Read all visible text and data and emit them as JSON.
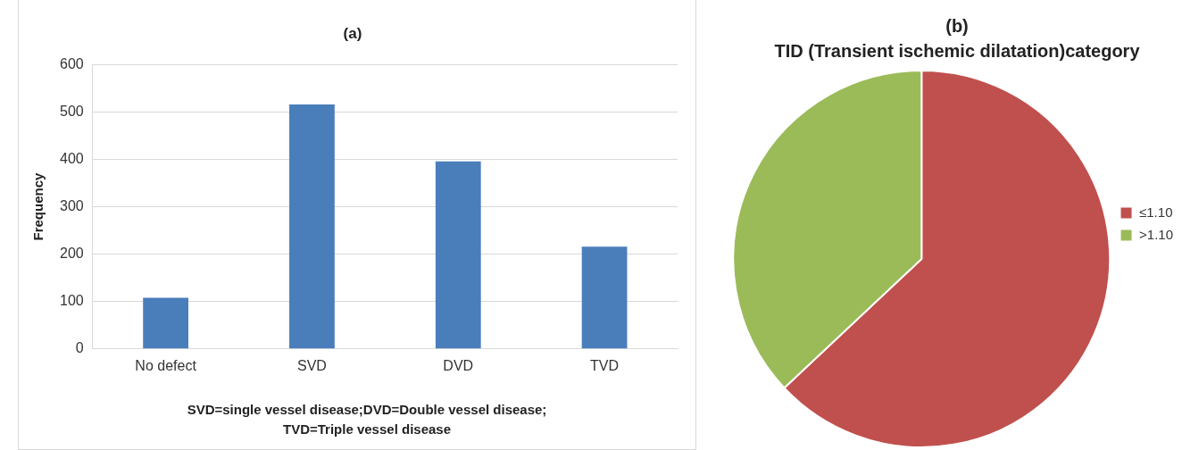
{
  "chart_data": [
    {
      "type": "bar",
      "title": "(a)",
      "ylabel": "Frequency",
      "xlabel": "SVD=single vessel disease;DVD=Double vessel disease; TVD=Triple vessel disease",
      "categories": [
        "No defect",
        "SVD",
        "DVD",
        "TVD"
      ],
      "values": [
        108,
        516,
        396,
        216
      ],
      "color": "#4a7ebb",
      "ylim": [
        0,
        600
      ],
      "yticks": [
        0,
        100,
        200,
        300,
        400,
        500,
        600
      ],
      "grid": "y",
      "legend": false
    },
    {
      "type": "pie",
      "title": "(b)",
      "subtitle": "TID (Transient ischemic dilatation)category",
      "categories": [
        "≤1.10",
        ">1.10"
      ],
      "values": [
        63,
        37
      ],
      "colors": [
        "#c0504d",
        "#9bbb59"
      ],
      "legend": "right"
    }
  ]
}
